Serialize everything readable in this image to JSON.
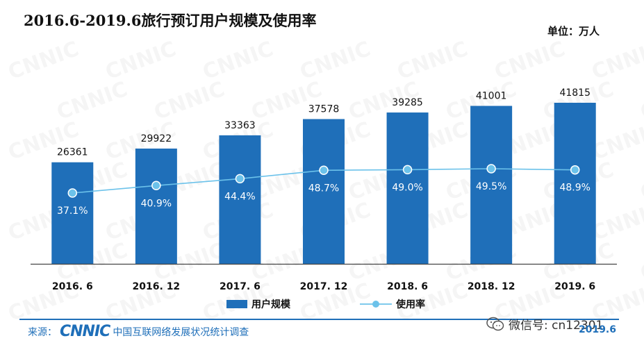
{
  "header": {
    "title": "2016.6-2019.6旅行预订用户规模及使用率",
    "unit": "单位：万人"
  },
  "watermark": "CNNIC",
  "chart_data": {
    "type": "bar",
    "categories": [
      "2016. 6",
      "2016. 12",
      "2017. 6",
      "2017. 12",
      "2018. 6",
      "2018. 12",
      "2019. 6"
    ],
    "series": [
      {
        "name": "用户规模",
        "type": "bar",
        "values": [
          26361,
          29922,
          33363,
          37578,
          39285,
          41001,
          41815
        ],
        "color": "#1f6fb9"
      },
      {
        "name": "使用率",
        "type": "line",
        "values": [
          37.1,
          40.9,
          44.4,
          48.7,
          49.0,
          49.5,
          48.9
        ],
        "labels": [
          "37.1%",
          "40.9%",
          "44.4%",
          "48.7%",
          "49.0%",
          "49.5%",
          "48.9%"
        ],
        "color": "#6cc2ea"
      }
    ],
    "ylim": [
      0,
      50000
    ],
    "rate_ylim": [
      0,
      100
    ],
    "grid": false,
    "legend_position": "bottom"
  },
  "footer": {
    "source_label": "来源：",
    "logo": "CNNIC",
    "source_text": "中国互联网络发展状况统计调查",
    "wechat": "微信号: cn12301",
    "date": "2019.6"
  },
  "colors": {
    "accent": "#1f6fb9",
    "line": "#6cc2ea"
  }
}
